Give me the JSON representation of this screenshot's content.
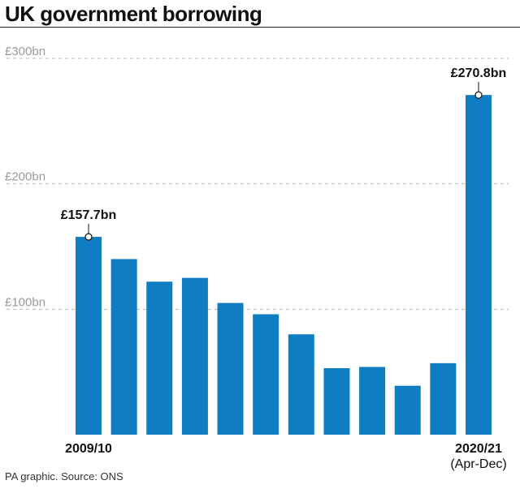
{
  "chart_data": {
    "type": "bar",
    "title": "UK government borrowing",
    "categories": [
      "2009/10",
      "",
      "",
      "",
      "",
      "",
      "",
      "",
      "",
      "",
      "",
      "2020/21"
    ],
    "x_tick_labels": [
      {
        "index": 0,
        "lines": [
          "2009/10"
        ]
      },
      {
        "index": 11,
        "lines": [
          "2020/21",
          "(Apr-Dec)"
        ]
      }
    ],
    "values": [
      157.7,
      140,
      122,
      125,
      105,
      96,
      80,
      53,
      54,
      39,
      57,
      270.8
    ],
    "ylim": [
      0,
      300
    ],
    "yticks": [
      {
        "value": 100,
        "label": "£100bn"
      },
      {
        "value": 200,
        "label": "£200bn"
      },
      {
        "value": 300,
        "label": "£300bn"
      }
    ],
    "annotations": [
      {
        "index": 0,
        "text": "£157.7bn"
      },
      {
        "index": 11,
        "text": "£270.8bn"
      }
    ],
    "grid": true,
    "colors": {
      "bar": "#0f7dc2",
      "grid": "#b5b5b5"
    }
  },
  "source": "PA graphic. Source: ONS"
}
